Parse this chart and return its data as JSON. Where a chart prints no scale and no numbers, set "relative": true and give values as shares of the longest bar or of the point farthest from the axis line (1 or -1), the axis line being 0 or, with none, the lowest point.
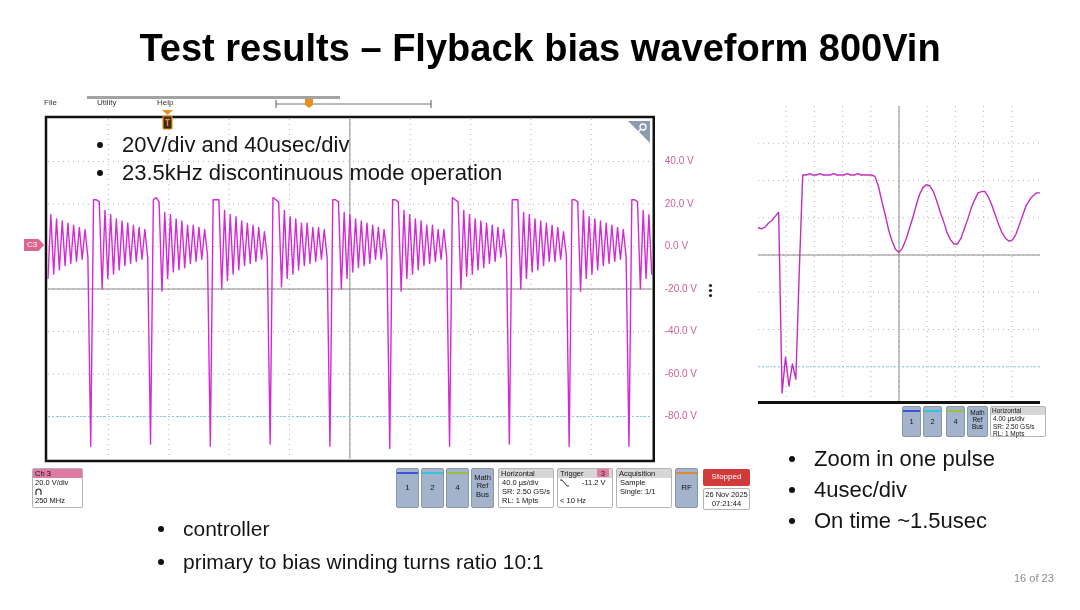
{
  "chart_data": [
    {
      "type": "line",
      "title": "Test results – Flyback bias waveform 800Vin",
      "categories": [
        null,
        null,
        null,
        null,
        null,
        null,
        null,
        null,
        null,
        null,
        null,
        null,
        null,
        null,
        null,
        null,
        null,
        null,
        null,
        null,
        null,
        null,
        null,
        null,
        null,
        null,
        null,
        null,
        null,
        null,
        null,
        null,
        null,
        null,
        null,
        null,
        null,
        null,
        null,
        null,
        null,
        null,
        null,
        null,
        null,
        null,
        null,
        null,
        null,
        null,
        null,
        null,
        null,
        null,
        null,
        null,
        null,
        null,
        null,
        null,
        null,
        null,
        null,
        null,
        null,
        null,
        null,
        null,
        null,
        null,
        null,
        null,
        null,
        null,
        null,
        null,
        null,
        null,
        null,
        null,
        null,
        null,
        null,
        null,
        null,
        null,
        null,
        null,
        null,
        null,
        null,
        null,
        null,
        null,
        null,
        null,
        null,
        null,
        null,
        null,
        null,
        null,
        null,
        null,
        null,
        null,
        null,
        null,
        null,
        null,
        null,
        null,
        null,
        null,
        null,
        null,
        null,
        null,
        null,
        null,
        null,
        null,
        null,
        null,
        null,
        null,
        null,
        null,
        null,
        null,
        null,
        null,
        null,
        null,
        null,
        null,
        null,
        null,
        null,
        null,
        null,
        null,
        null,
        null,
        null,
        null,
        null,
        null,
        null,
        null,
        null,
        null,
        null,
        null,
        null,
        null,
        null,
        null,
        null,
        null,
        null,
        null,
        null,
        null,
        null,
        null,
        null,
        null,
        null,
        null,
        null,
        null,
        null,
        null,
        null,
        null,
        null,
        null,
        null,
        null,
        null,
        null,
        null,
        null,
        null,
        null,
        null,
        null,
        null,
        null,
        null,
        null,
        null,
        null,
        null,
        null,
        null,
        null,
        null,
        null,
        null,
        null,
        null,
        null,
        null,
        null,
        null,
        null,
        null,
        null,
        null,
        null,
        null
      ],
      "values": [
        -15,
        15,
        -13,
        13,
        -11,
        12,
        -9,
        11,
        -8,
        10,
        -7,
        9,
        -6,
        8,
        -5,
        -94,
        22,
        22,
        21,
        -20,
        17,
        -15,
        15,
        -13,
        13,
        -11,
        12,
        -9,
        11,
        -8,
        10,
        -7,
        9,
        -6,
        8,
        -5,
        -93,
        22,
        23,
        21,
        -21,
        16,
        -15,
        15,
        -12,
        13,
        -11,
        12,
        -10,
        10,
        -8,
        10,
        -7,
        9,
        -6,
        8,
        -4,
        -94,
        22,
        22,
        22,
        -20,
        17,
        -16,
        15,
        -13,
        14,
        -11,
        12,
        -9,
        11,
        -8,
        10,
        -7,
        9,
        -6,
        7,
        -5,
        -93,
        23,
        22,
        21,
        -19,
        17,
        -15,
        14,
        -13,
        13,
        -11,
        11,
        -9,
        11,
        -8,
        9,
        -7,
        9,
        -6,
        8,
        -5,
        -94,
        22,
        22,
        21,
        -20,
        16,
        -15,
        15,
        -12,
        13,
        -10,
        12,
        -9,
        11,
        -8,
        10,
        -6,
        9,
        -6,
        8,
        -4,
        -95,
        22,
        22,
        21,
        -21,
        17,
        -15,
        15,
        -13,
        13,
        -11,
        12,
        -9,
        10,
        -8,
        10,
        -7,
        8,
        -6,
        8,
        -5,
        -94,
        23,
        22,
        21,
        -20,
        17,
        -14,
        15,
        -13,
        13,
        -11,
        12,
        -10,
        11,
        -8,
        10,
        -7,
        9,
        -5,
        8,
        -5,
        -93,
        22,
        22,
        22,
        -20,
        16,
        -15,
        15,
        -12,
        13,
        -11,
        12,
        -9,
        11,
        -7,
        10,
        -7,
        9,
        -6,
        7,
        -4,
        -94,
        22,
        22,
        21,
        -21,
        17,
        -15,
        14,
        -13,
        13,
        -11,
        12,
        -9,
        11,
        -8,
        10,
        -7,
        9,
        -6,
        8,
        -5,
        -94,
        22,
        22,
        21,
        -20,
        17,
        -15,
        15,
        -13
      ],
      "color": "#d42ad4",
      "ylim": [
        -100,
        60
      ],
      "yticks": [
        {
          "value": 40,
          "label": "40.0 V"
        },
        {
          "value": 20,
          "label": "20.0 V"
        },
        {
          "value": 0,
          "label": "0.0 V"
        },
        {
          "value": -20,
          "label": "-20.0 V"
        },
        {
          "value": -40,
          "label": "-40.0 V"
        },
        {
          "value": -60,
          "label": "-60.0 V"
        },
        {
          "value": -80,
          "label": "-80.0 V"
        }
      ],
      "grid": true,
      "tick_labels": "y",
      "ref_lines": [
        {
          "axis": "y",
          "value": -80,
          "color": "#7fd0e0",
          "line_style": "dotted"
        }
      ],
      "annotations": [
        "20V/div and 40usec/div",
        "23.5kHz discontinuous mode operation",
        "controller",
        "primary to bias winding turns ratio 10:1",
        "16 of 23",
        "File",
        "Utility",
        "Help",
        "C3",
        "Ch 3",
        "20.0 V/div",
        "250 MHz",
        "1",
        "2",
        "4",
        "Math Ref Bus",
        "Horizontal",
        "40.0 µs/div",
        "SR: 2.50 GS/s",
        "RL: 1 Mpts",
        "Trigger",
        "3",
        "-11.2 V",
        "< 10 Hz",
        "Acquisition",
        "Sample",
        "Single: 1/1",
        "RF",
        "Stopped",
        "26 Nov 2025",
        "07:21:44"
      ]
    },
    {
      "type": "line",
      "relative": true,
      "categories": [
        null,
        null,
        null,
        null,
        null,
        null,
        null,
        null,
        null,
        null,
        null,
        null,
        null,
        null,
        null,
        null,
        null,
        null,
        null,
        null,
        null,
        null,
        null,
        null,
        null,
        null,
        null,
        null,
        null,
        null,
        null,
        null,
        null,
        null,
        null,
        null,
        null,
        null,
        null,
        null,
        null,
        null,
        null,
        null,
        null,
        null,
        null,
        null,
        null,
        null,
        null,
        null,
        null,
        null,
        null,
        null,
        null,
        null,
        null,
        null,
        null,
        null,
        null,
        null,
        null,
        null,
        null,
        null,
        null,
        null,
        null,
        null,
        null,
        null,
        null,
        null,
        null,
        null,
        null,
        null,
        null,
        null,
        null
      ],
      "values": [
        0.2,
        0.19,
        0.2,
        0.23,
        0.25,
        0.28,
        0.31,
        -1,
        -0.74,
        -0.95,
        -0.79,
        -0.9,
        -0.12,
        0.58,
        0.58,
        0.59,
        0.58,
        0.58,
        0.59,
        0.58,
        0.58,
        0.58,
        0.59,
        0.58,
        0.58,
        0.58,
        0.59,
        0.58,
        0.58,
        0.59,
        0.58,
        0.58,
        0.58,
        0.58,
        0.57,
        0.5,
        0.39,
        0.29,
        0.18,
        0.1,
        0.04,
        0.02,
        0.05,
        0.11,
        0.19,
        0.27,
        0.36,
        0.44,
        0.49,
        0.51,
        0.5,
        0.46,
        0.39,
        0.31,
        0.24,
        0.16,
        0.11,
        0.08,
        0.08,
        0.12,
        0.19,
        0.26,
        0.34,
        0.4,
        0.45,
        0.46,
        0.46,
        0.42,
        0.36,
        0.29,
        0.22,
        0.16,
        0.12,
        0.1,
        0.11,
        0.15,
        0.22,
        0.29,
        0.36,
        0.4,
        0.43,
        0.45,
        0.45
      ],
      "color": "#c22cc2",
      "grid": true,
      "tick_labels": false,
      "ref_lines": [
        {
          "axis": "y",
          "value": -0.81,
          "color": "#7fd0e0",
          "line_style": "dotted"
        }
      ],
      "annotations": [
        "Zoom in one pulse",
        "4usec/div",
        "On time ~1.5usec",
        "1",
        "2",
        "4",
        "Math Ref Bus",
        "Horizontal",
        "4.00 µs/div",
        "SR: 2.50 GS/s",
        "RL: 1 Mpts"
      ]
    }
  ]
}
